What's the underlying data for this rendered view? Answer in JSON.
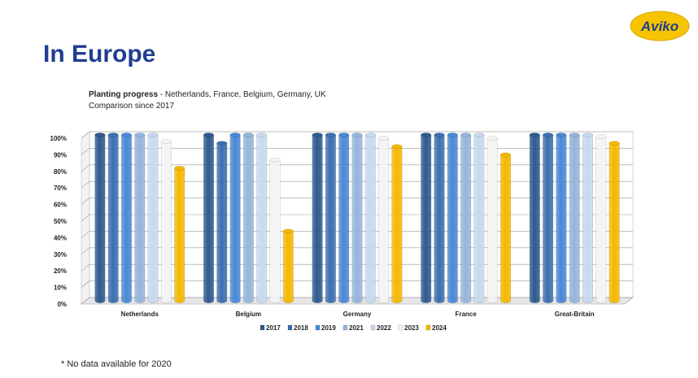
{
  "page": {
    "title": "In Europe",
    "footnote": "* No data available for 2020"
  },
  "brand": {
    "logo_text": "Aviko",
    "colors": {
      "title": "#1f3f8f",
      "logo_bg": "#f6c400",
      "logo_text": "#1f3f8f"
    }
  },
  "subtitle": {
    "bold": "Planting progress",
    "rest": " - Netherlands, France, Belgium, Germany, UK",
    "line2": "Comparison since 2017"
  },
  "chart_data": {
    "type": "bar",
    "categories": [
      "Netherlands",
      "Belgium",
      "Germany",
      "France",
      "Great-Britain"
    ],
    "ylim": [
      0,
      100
    ],
    "yticks": [
      "0%",
      "10%",
      "20%",
      "30%",
      "40%",
      "50%",
      "60%",
      "70%",
      "80%",
      "90%",
      "100%"
    ],
    "grid": true,
    "legend_position": "bottom",
    "series": [
      {
        "name": "2017",
        "color": "#2e5a8f",
        "values": [
          100,
          100,
          100,
          100,
          100
        ]
      },
      {
        "name": "2018",
        "color": "#3c6fb0",
        "values": [
          100,
          95,
          100,
          100,
          100
        ]
      },
      {
        "name": "2019",
        "color": "#4a88d6",
        "values": [
          100,
          100,
          100,
          100,
          100
        ]
      },
      {
        "name": "2021",
        "color": "#96b4db",
        "values": [
          100,
          100,
          100,
          100,
          100
        ]
      },
      {
        "name": "2022",
        "color": "#c7d9ef",
        "values": [
          100,
          100,
          100,
          100,
          100
        ]
      },
      {
        "name": "2023",
        "color": "#f4f4f4",
        "values": [
          96,
          85,
          98,
          98,
          99
        ]
      },
      {
        "name": "2024",
        "color": "#f5b800",
        "values": [
          80,
          42,
          93,
          88,
          95
        ]
      }
    ]
  }
}
